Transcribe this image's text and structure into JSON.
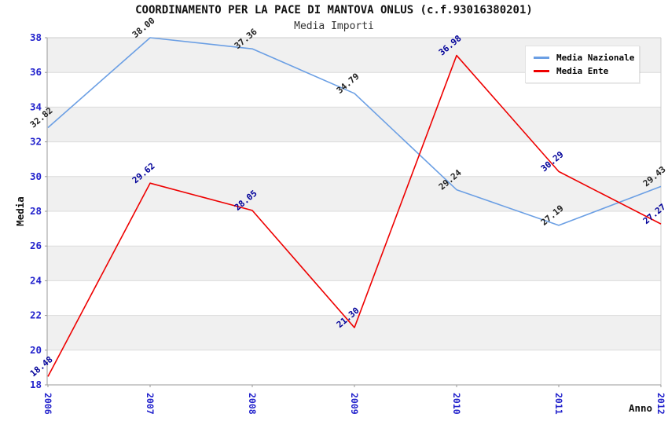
{
  "title": "COORDINAMENTO PER LA PACE DI MANTOVA ONLUS (c.f.93016380201)",
  "subtitle": "Media Importi",
  "chart_data": {
    "type": "line",
    "x": [
      2006,
      2007,
      2008,
      2009,
      2010,
      2011,
      2012
    ],
    "xlabel": "Anno",
    "ylabel": "Media",
    "ylim": [
      18,
      38
    ],
    "ytick_step": 2,
    "grid": true,
    "alternating_bands": true,
    "legend_position": "top-right",
    "value_label_decimals": 2,
    "series": [
      {
        "name": "Media Nazionale",
        "color": "#6B9FE4",
        "value_label_color": "#222222",
        "values": [
          32.82,
          38.0,
          37.36,
          34.79,
          29.24,
          27.19,
          29.43
        ]
      },
      {
        "name": "Media Ente",
        "color": "#EE0000",
        "value_label_color": "#000099",
        "values": [
          18.48,
          29.62,
          28.05,
          21.3,
          36.98,
          30.29,
          27.27
        ]
      }
    ]
  },
  "style": {
    "axis_tick_label_color": "#2222CC",
    "band_fill": "#F0F0F0",
    "grid_color": "#DCDCDC",
    "axis_color": "#999999",
    "plot_border_color": "#CCCCCC",
    "title_color": "#111111",
    "subtitle_color": "#333333",
    "axis_title_color": "#111111"
  }
}
